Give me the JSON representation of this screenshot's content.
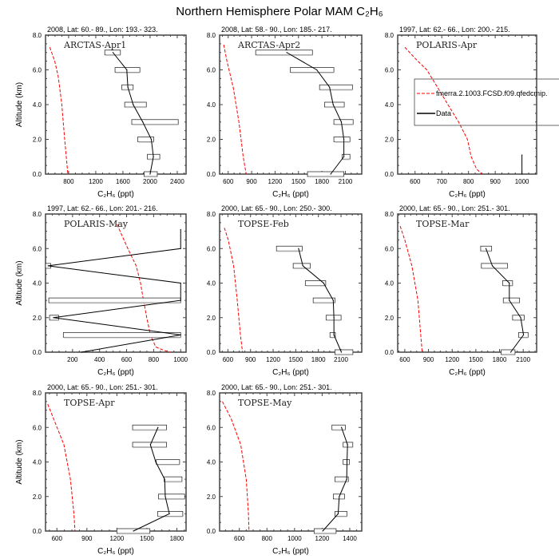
{
  "title": "Northern Hemisphere Polar MAM C₂H₆",
  "legend": {
    "model_label": "fmerra.2.1003.FCSD.f09.qfedcmip.",
    "data_label": "Data",
    "model_color": "#ff0000",
    "data_color": "#000000"
  },
  "chart_data": [
    {
      "type": "line",
      "name": "ARCTAS-Apr1",
      "header": "2008, Lat:  60.- 89., Lon: 193.- 323.",
      "xlabel": "C₂H₆ (ppt)",
      "ylabel": "Altitude (km)",
      "xlim": [
        460,
        2530
      ],
      "ylim": [
        0,
        8
      ],
      "xticks": [
        800,
        1200,
        1600,
        2000,
        2400
      ],
      "yticks": [
        "0.0",
        "2.0",
        "4.0",
        "6.0",
        "8.0"
      ],
      "model": {
        "alt": [
          7.3,
          6.5,
          5.6,
          4,
          2,
          0
        ],
        "value": [
          523,
          596,
          648,
          700,
          742,
          789
        ]
      },
      "data": {
        "alt": [
          7,
          6,
          5,
          4,
          3,
          2,
          1,
          0
        ],
        "mean": [
          1453,
          1657,
          1673,
          1751,
          1892,
          2018,
          2049,
          2000
        ],
        "low": [
          1333,
          1484,
          1584,
          1626,
          1730,
          1819,
          1960,
          1913
        ],
        "high": [
          1563,
          1850,
          1751,
          1945,
          2415,
          2054,
          2143,
          2106
        ]
      }
    },
    {
      "type": "line",
      "name": "ARCTAS-Apr2",
      "header": "2008, Lat:  58.- 90., Lon: 185.- 217.",
      "xlabel": "C₂H₆ (ppt)",
      "ylabel": "",
      "xlim": [
        490,
        2310
      ],
      "ylim": [
        0,
        8
      ],
      "xticks": [
        600,
        900,
        1200,
        1500,
        1800,
        2100
      ],
      "yticks": [
        "0.0",
        "2.0",
        "4.0",
        "6.0",
        "8.0"
      ],
      "model": {
        "alt": [
          7.45,
          6.5,
          5,
          3,
          1,
          0
        ],
        "value": [
          543,
          584,
          664,
          737,
          792,
          830
        ]
      },
      "data": {
        "alt": [
          7,
          6,
          5,
          4,
          3,
          2,
          1,
          0
        ],
        "mean": [
          1350,
          1734,
          1898,
          1944,
          2049,
          2081,
          2081,
          1912
        ],
        "low": [
          952,
          1395,
          1770,
          1834,
          1953,
          1953,
          2059,
          1615
        ],
        "high": [
          1679,
          1953,
          2191,
          2086,
          2200,
          2159,
          2159,
          2081
        ]
      }
    },
    {
      "type": "line",
      "name": "POLARIS-Apr",
      "header": "1997, Lat: 62.- 66., Lon: 200.- 215.",
      "xlabel": "C₂H₆ (ppt)",
      "ylabel": "",
      "xlim": [
        535,
        1055
      ],
      "ylim": [
        0,
        8
      ],
      "xticks": [
        600,
        700,
        800,
        900,
        1000
      ],
      "yticks": [
        "0.0",
        "2.0",
        "4.0",
        "6.0",
        "8.0"
      ],
      "legend": true,
      "model": {
        "alt": [
          7.3,
          6.6,
          6,
          5,
          4,
          3,
          2,
          1,
          0.3,
          0
        ],
        "value": [
          562,
          604,
          644,
          684,
          723,
          763,
          796,
          810,
          830,
          850
        ]
      },
      "data": {
        "alt": [
          1.1,
          0
        ],
        "mean": [
          1000,
          1000
        ],
        "low": [],
        "high": []
      }
    },
    {
      "type": "line",
      "name": "POLARIS-May",
      "header": "1997, Lat: 62.- 66., Lon: 201.- 216.",
      "xlabel": "C₂H₆ (ppt)",
      "ylabel": "Altitude (km)",
      "xlim": [
        0,
        1040
      ],
      "ylim": [
        0,
        8
      ],
      "xticks": [
        200,
        400,
        600,
        800,
        1000
      ],
      "yticks": [
        "0.0",
        "2.0",
        "4.0",
        "6.0",
        "8.0"
      ],
      "model": {
        "alt": [
          7.4,
          6,
          5,
          4,
          3,
          2,
          1,
          0.3,
          0.1,
          0
        ],
        "value": [
          529,
          609,
          671,
          703,
          725,
          749,
          776,
          816,
          878,
          923
        ]
      },
      "data": {
        "alt": [
          7.1,
          6,
          5,
          4,
          3,
          2,
          1,
          0
        ],
        "mean": [
          1000,
          1000,
          19,
          1000,
          1000,
          59,
          1000,
          266
        ],
        "low": [
          null,
          null,
          0,
          null,
          24,
          30,
          132,
          null
        ],
        "high": [
          null,
          null,
          38,
          null,
          1000,
          97,
          1000,
          null
        ]
      }
    },
    {
      "type": "line",
      "name": "TOPSE-Feb",
      "header": "2000, Lat: 65.- 90., Lon: 250.- 300.",
      "xlabel": "C₂H₆ (ppt)",
      "ylabel": "",
      "xlim": [
        490,
        2375
      ],
      "ylim": [
        0,
        8
      ],
      "xticks": [
        600,
        900,
        1200,
        1500,
        1800,
        2100
      ],
      "yticks": [
        "0.0",
        "2.0",
        "4.0",
        "6.0",
        "8.0"
      ],
      "model": {
        "alt": [
          7.2,
          6.5,
          5,
          3,
          1,
          0
        ],
        "value": [
          553,
          605,
          676,
          724,
          766,
          794
        ]
      },
      "data": {
        "alt": [
          6,
          5,
          4,
          3,
          2,
          1,
          0
        ],
        "mean": [
          1537,
          1594,
          1869,
          1997,
          2006,
          2006,
          2105
        ],
        "low": [
          1244,
          1466,
          1627,
          1731,
          1902,
          1954,
          2020
        ],
        "high": [
          1585,
          1693,
          1897,
          2020,
          2101,
          2025,
          2257
        ]
      }
    },
    {
      "type": "line",
      "name": "TOPSE-Mar",
      "header": "2000, Lat: 65.- 90., Lon: 251.- 301.",
      "xlabel": "C₂H₆ (ppt)",
      "ylabel": "",
      "xlim": [
        510,
        2270
      ],
      "ylim": [
        0,
        8
      ],
      "xticks": [
        600,
        900,
        1200,
        1500,
        1800,
        2100
      ],
      "yticks": [
        "0.0",
        "2.0",
        "4.0",
        "6.0",
        "8.0"
      ],
      "model": {
        "alt": [
          7.3,
          6.5,
          5,
          3,
          1,
          0
        ],
        "value": [
          541,
          600,
          690,
          766,
          802,
          820
        ]
      },
      "data": {
        "alt": [
          6,
          5,
          4,
          3,
          2,
          1,
          0
        ],
        "mean": [
          1628,
          1709,
          1924,
          1924,
          2068,
          2104,
          1942
        ],
        "low": [
          1561,
          1570,
          1839,
          1848,
          1965,
          2041,
          1821
        ],
        "high": [
          1700,
          1902,
          1965,
          2054,
          2113,
          2162,
          1996
        ]
      }
    },
    {
      "type": "line",
      "name": "TOPSE-Apr",
      "header": "2000, Lat: 65.- 90., Lon: 251.- 301.",
      "xlabel": "C₂H₆ (ppt)",
      "ylabel": "Altitude (km)",
      "xlim": [
        486,
        1892
      ],
      "ylim": [
        0,
        8
      ],
      "xticks": [
        600,
        900,
        1200,
        1500,
        1800
      ],
      "yticks": [
        "0.0",
        "2.0",
        "4.0",
        "6.0",
        "8.0"
      ],
      "model": {
        "alt": [
          7.35,
          6.5,
          5,
          3,
          1,
          0
        ],
        "value": [
          508,
          567,
          670,
          735,
          770,
          781
        ]
      },
      "data": {
        "alt": [
          6,
          5,
          4,
          3,
          2,
          1,
          0
        ],
        "mean": [
          1611,
          1535,
          1589,
          1678,
          1684,
          1725,
          1365
        ],
        "low": [
          1357,
          1357,
          1594,
          1673,
          1616,
          1608,
          1200
        ],
        "high": [
          1697,
          1697,
          1827,
          1851,
          1878,
          1859,
          1530
        ]
      }
    },
    {
      "type": "line",
      "name": "TOPSE-May",
      "header": "2000, Lat: 65.- 90., Lon: 251.- 301.",
      "xlabel": "C₂H₆ (ppt)",
      "ylabel": "",
      "xlim": [
        457,
        1487
      ],
      "ylim": [
        0,
        8
      ],
      "xticks": [
        600,
        800,
        1000,
        1200,
        1400
      ],
      "yticks": [
        "0.0",
        "2.0",
        "4.0",
        "6.0",
        "8.0"
      ],
      "model": {
        "alt": [
          7.5,
          6.5,
          5,
          3,
          1,
          0
        ],
        "value": [
          477,
          541,
          610,
          650,
          666,
          670
        ]
      },
      "data": {
        "alt": [
          6,
          5,
          4,
          3,
          2,
          1,
          0
        ],
        "mean": [
          1340,
          1384,
          1380,
          1378,
          1324,
          1316,
          1204
        ],
        "low": [
          1271,
          1352,
          1352,
          1293,
          1281,
          1293,
          1142
        ],
        "high": [
          1368,
          1422,
          1398,
          1390,
          1362,
          1380,
          1301
        ]
      }
    }
  ]
}
